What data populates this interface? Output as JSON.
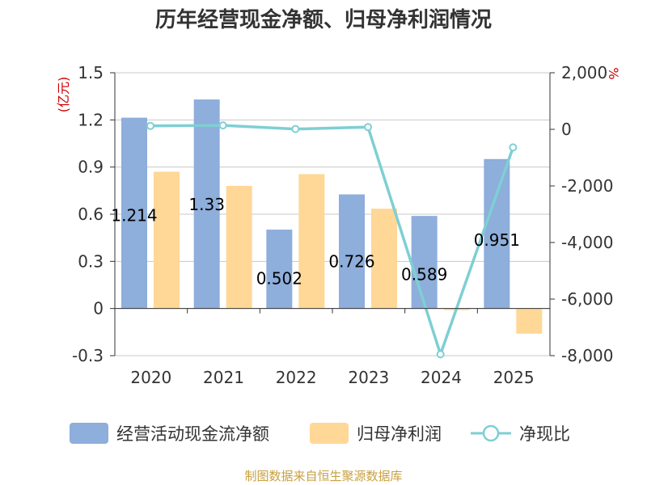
{
  "chart_data": {
    "type": "bar",
    "title": "历年经营现金净额、归母净利润情况",
    "categories": [
      "2020",
      "2021",
      "2022",
      "2023",
      "2024",
      "2025"
    ],
    "series": [
      {
        "name": "经营活动现金流净额",
        "type": "bar",
        "axis": "left",
        "color": "#8eaedb",
        "values": [
          1.214,
          1.33,
          0.502,
          0.726,
          0.589,
          0.951
        ],
        "labels": [
          "1.214",
          "1.33",
          "0.502",
          "0.726",
          "0.589",
          "0.951"
        ]
      },
      {
        "name": "归母净利润",
        "type": "bar",
        "axis": "left",
        "color": "#ffd796",
        "values": [
          0.87,
          0.78,
          0.855,
          0.635,
          -0.01,
          -0.16
        ]
      },
      {
        "name": "净现比",
        "type": "line",
        "axis": "right",
        "color": "#7ecfd4",
        "values": [
          120,
          140,
          10,
          80,
          -7950,
          -640
        ]
      }
    ],
    "left_axis": {
      "unit": "(亿元)",
      "min": -0.3,
      "max": 1.5,
      "ticks": [
        -0.3,
        0,
        0.3,
        0.6,
        0.9,
        1.2,
        1.5
      ],
      "tick_labels": [
        "-0.3",
        "0",
        "0.3",
        "0.6",
        "0.9",
        "1.2",
        "1.5"
      ]
    },
    "right_axis": {
      "unit": "%",
      "min": -8000,
      "max": 2000,
      "ticks": [
        -8000,
        -6000,
        -4000,
        -2000,
        0,
        2000
      ],
      "tick_labels": [
        "-8,000",
        "-6,000",
        "-4,000",
        "-2,000",
        "0",
        "2,000"
      ]
    },
    "grid": true,
    "legend": "bottom",
    "source": "制图数据来自恒生聚源数据库"
  }
}
